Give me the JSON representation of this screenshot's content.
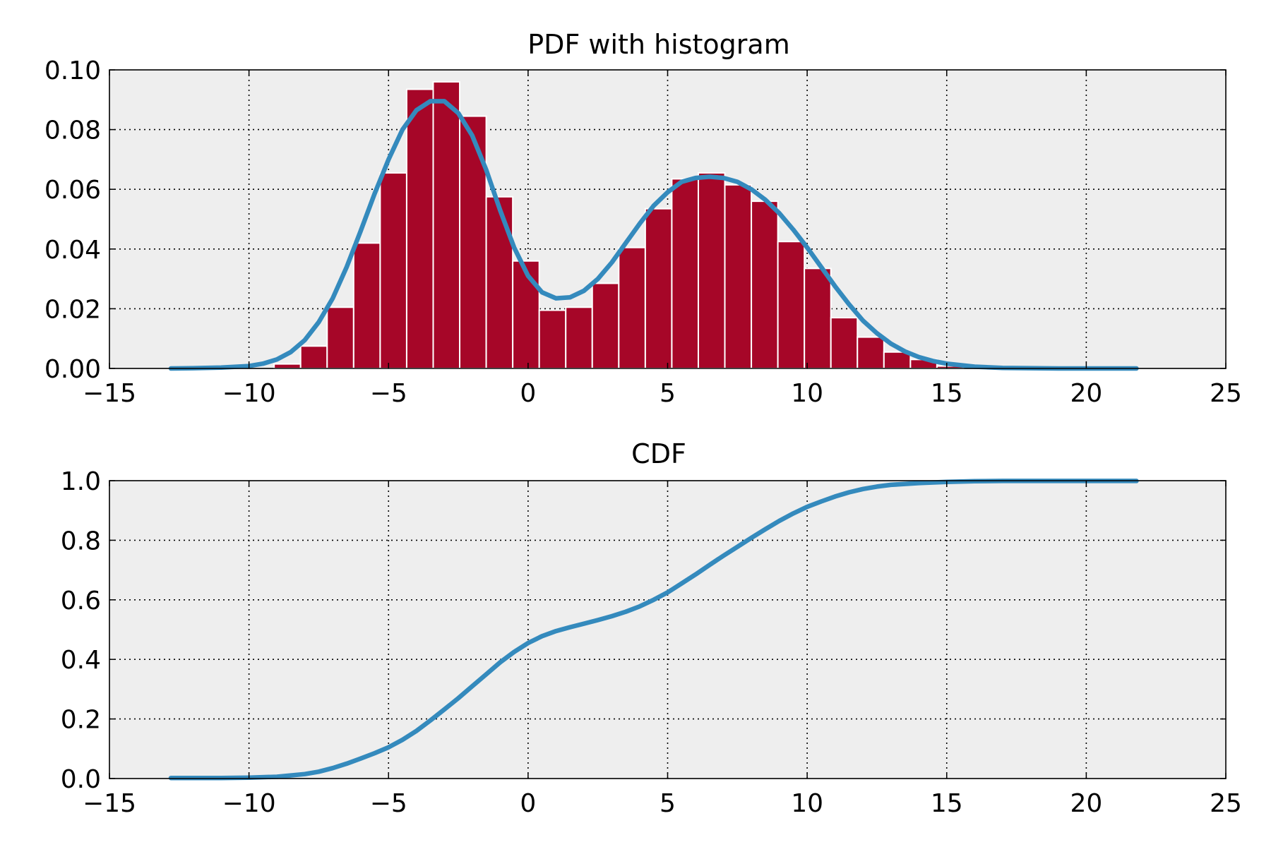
{
  "colors": {
    "histogram": "#a60628",
    "curve": "#348abd",
    "axes_background": "#eeeeee"
  },
  "chart_data": [
    {
      "type": "bar",
      "title": "PDF with histogram",
      "xlabel": "",
      "ylabel": "",
      "xlim": [
        -15,
        25
      ],
      "ylim": [
        0,
        0.1
      ],
      "grid": true,
      "x_ticks": [
        -15,
        -10,
        -5,
        0,
        5,
        10,
        15,
        20,
        25
      ],
      "x_tick_labels": [
        "−15",
        "−10",
        "−5",
        "0",
        "5",
        "10",
        "15",
        "20",
        "25"
      ],
      "y_ticks": [
        0,
        0.02,
        0.04,
        0.06,
        0.08,
        0.1
      ],
      "y_tick_labels": [
        "0.00",
        "0.02",
        "0.04",
        "0.06",
        "0.08",
        "0.10"
      ],
      "histogram": {
        "bin_width": 0.95,
        "bin_starts": [
          -9.1,
          -8.15,
          -7.2,
          -6.25,
          -5.3,
          -4.35,
          -3.4,
          -2.45,
          -1.5,
          -0.55,
          0.4,
          1.35,
          2.3,
          3.25,
          4.2,
          5.15,
          6.1,
          7.05,
          8.0,
          8.95,
          9.9,
          10.85,
          11.8,
          12.75,
          13.7,
          14.65
        ],
        "values": [
          0.0015,
          0.0075,
          0.0205,
          0.042,
          0.0655,
          0.0935,
          0.096,
          0.0845,
          0.0575,
          0.036,
          0.0195,
          0.0205,
          0.0285,
          0.0405,
          0.0535,
          0.0635,
          0.0655,
          0.0615,
          0.056,
          0.0425,
          0.0335,
          0.017,
          0.0105,
          0.0055,
          0.003,
          0.0008
        ]
      },
      "pdf_curve": {
        "x": [
          -12.8,
          -12,
          -11,
          -10,
          -9.5,
          -9,
          -8.5,
          -8,
          -7.5,
          -7,
          -6.5,
          -6,
          -5.5,
          -5,
          -4.5,
          -4,
          -3.5,
          -3,
          -2.5,
          -2,
          -1.5,
          -1,
          -0.5,
          0,
          0.5,
          1,
          1.5,
          2,
          2.5,
          3,
          3.5,
          4,
          4.5,
          5,
          5.5,
          6,
          6.5,
          7,
          7.5,
          8,
          8.5,
          9,
          9.5,
          10,
          10.5,
          11,
          11.5,
          12,
          12.5,
          13,
          13.5,
          14,
          14.5,
          15,
          16,
          17,
          18,
          19,
          20,
          21,
          21.8
        ],
        "y": [
          0.0,
          0.0001,
          0.0003,
          0.0008,
          0.0016,
          0.003,
          0.0055,
          0.0095,
          0.0155,
          0.0235,
          0.034,
          0.046,
          0.0585,
          0.07,
          0.08,
          0.0865,
          0.0895,
          0.0895,
          0.0855,
          0.078,
          0.0665,
          0.053,
          0.0405,
          0.031,
          0.0255,
          0.0235,
          0.0238,
          0.026,
          0.03,
          0.0355,
          0.042,
          0.0485,
          0.0545,
          0.059,
          0.0625,
          0.0638,
          0.0642,
          0.0638,
          0.0625,
          0.06,
          0.0565,
          0.052,
          0.0465,
          0.0405,
          0.034,
          0.0275,
          0.0215,
          0.016,
          0.0118,
          0.0083,
          0.0057,
          0.0038,
          0.0025,
          0.0016,
          0.0006,
          0.0002,
          0.0001,
          0.0,
          0.0,
          0.0,
          0.0
        ]
      }
    },
    {
      "type": "line",
      "title": "CDF",
      "xlabel": "",
      "ylabel": "",
      "xlim": [
        -15,
        25
      ],
      "ylim": [
        0,
        1.0
      ],
      "grid": true,
      "x_ticks": [
        -15,
        -10,
        -5,
        0,
        5,
        10,
        15,
        20,
        25
      ],
      "x_tick_labels": [
        "−15",
        "−10",
        "−5",
        "0",
        "5",
        "10",
        "15",
        "20",
        "25"
      ],
      "y_ticks": [
        0,
        0.2,
        0.4,
        0.6,
        0.8,
        1.0
      ],
      "y_tick_labels": [
        "0.0",
        "0.2",
        "0.4",
        "0.6",
        "0.8",
        "1.0"
      ],
      "cdf_curve": {
        "x": [
          -12.8,
          -12,
          -11,
          -10,
          -9,
          -8,
          -7.5,
          -7,
          -6.5,
          -6,
          -5.5,
          -5,
          -4.5,
          -4,
          -3.5,
          -3,
          -2.5,
          -2,
          -1.5,
          -1,
          -0.5,
          0,
          0.5,
          1,
          1.5,
          2,
          2.5,
          3,
          3.5,
          4,
          4.5,
          5,
          5.5,
          6,
          6.5,
          7,
          7.5,
          8,
          8.5,
          9,
          9.5,
          10,
          10.5,
          11,
          11.5,
          12,
          12.5,
          13,
          14,
          15,
          16,
          17,
          18,
          20,
          21.8
        ],
        "y": [
          0.002,
          0.002,
          0.002,
          0.003,
          0.006,
          0.015,
          0.023,
          0.035,
          0.05,
          0.067,
          0.085,
          0.105,
          0.13,
          0.16,
          0.195,
          0.232,
          0.27,
          0.31,
          0.35,
          0.39,
          0.425,
          0.455,
          0.478,
          0.495,
          0.508,
          0.52,
          0.532,
          0.545,
          0.56,
          0.578,
          0.6,
          0.625,
          0.655,
          0.685,
          0.717,
          0.748,
          0.778,
          0.808,
          0.837,
          0.865,
          0.89,
          0.912,
          0.93,
          0.947,
          0.961,
          0.972,
          0.98,
          0.986,
          0.992,
          0.996,
          0.998,
          0.999,
          0.999,
          0.999,
          0.999
        ]
      }
    }
  ]
}
